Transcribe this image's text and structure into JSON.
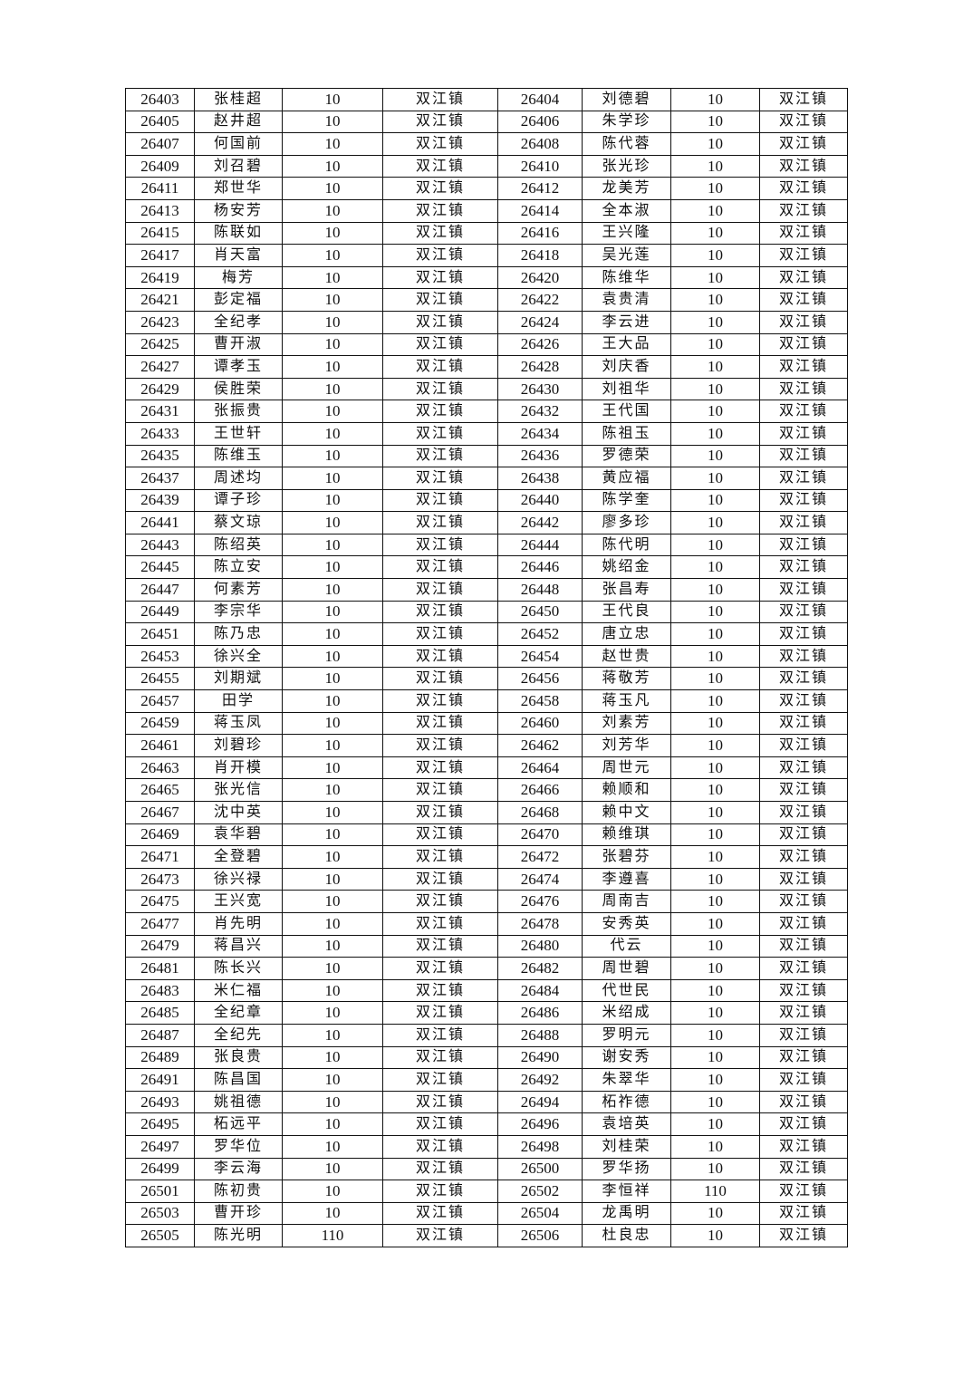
{
  "table": {
    "rows": [
      [
        "26403",
        "张桂超",
        "10",
        "双江镇",
        "26404",
        "刘德碧",
        "10",
        "双江镇"
      ],
      [
        "26405",
        "赵井超",
        "10",
        "双江镇",
        "26406",
        "朱学珍",
        "10",
        "双江镇"
      ],
      [
        "26407",
        "何国前",
        "10",
        "双江镇",
        "26408",
        "陈代蓉",
        "10",
        "双江镇"
      ],
      [
        "26409",
        "刘召碧",
        "10",
        "双江镇",
        "26410",
        "张光珍",
        "10",
        "双江镇"
      ],
      [
        "26411",
        "郑世华",
        "10",
        "双江镇",
        "26412",
        "龙美芳",
        "10",
        "双江镇"
      ],
      [
        "26413",
        "杨安芳",
        "10",
        "双江镇",
        "26414",
        "全本淑",
        "10",
        "双江镇"
      ],
      [
        "26415",
        "陈联如",
        "10",
        "双江镇",
        "26416",
        "王兴隆",
        "10",
        "双江镇"
      ],
      [
        "26417",
        "肖天富",
        "10",
        "双江镇",
        "26418",
        "吴光莲",
        "10",
        "双江镇"
      ],
      [
        "26419",
        "梅芳",
        "10",
        "双江镇",
        "26420",
        "陈维华",
        "10",
        "双江镇"
      ],
      [
        "26421",
        "彭定福",
        "10",
        "双江镇",
        "26422",
        "袁贵清",
        "10",
        "双江镇"
      ],
      [
        "26423",
        "全纪孝",
        "10",
        "双江镇",
        "26424",
        "李云进",
        "10",
        "双江镇"
      ],
      [
        "26425",
        "曹开淑",
        "10",
        "双江镇",
        "26426",
        "王大品",
        "10",
        "双江镇"
      ],
      [
        "26427",
        "谭孝玉",
        "10",
        "双江镇",
        "26428",
        "刘庆香",
        "10",
        "双江镇"
      ],
      [
        "26429",
        "侯胜荣",
        "10",
        "双江镇",
        "26430",
        "刘祖华",
        "10",
        "双江镇"
      ],
      [
        "26431",
        "张振贵",
        "10",
        "双江镇",
        "26432",
        "王代国",
        "10",
        "双江镇"
      ],
      [
        "26433",
        "王世轩",
        "10",
        "双江镇",
        "26434",
        "陈祖玉",
        "10",
        "双江镇"
      ],
      [
        "26435",
        "陈维玉",
        "10",
        "双江镇",
        "26436",
        "罗德荣",
        "10",
        "双江镇"
      ],
      [
        "26437",
        "周述均",
        "10",
        "双江镇",
        "26438",
        "黄应福",
        "10",
        "双江镇"
      ],
      [
        "26439",
        "谭子珍",
        "10",
        "双江镇",
        "26440",
        "陈学奎",
        "10",
        "双江镇"
      ],
      [
        "26441",
        "蔡文琼",
        "10",
        "双江镇",
        "26442",
        "廖多珍",
        "10",
        "双江镇"
      ],
      [
        "26443",
        "陈绍英",
        "10",
        "双江镇",
        "26444",
        "陈代明",
        "10",
        "双江镇"
      ],
      [
        "26445",
        "陈立安",
        "10",
        "双江镇",
        "26446",
        "姚绍金",
        "10",
        "双江镇"
      ],
      [
        "26447",
        "何素芳",
        "10",
        "双江镇",
        "26448",
        "张昌寿",
        "10",
        "双江镇"
      ],
      [
        "26449",
        "李宗华",
        "10",
        "双江镇",
        "26450",
        "王代良",
        "10",
        "双江镇"
      ],
      [
        "26451",
        "陈乃忠",
        "10",
        "双江镇",
        "26452",
        "唐立忠",
        "10",
        "双江镇"
      ],
      [
        "26453",
        "徐兴全",
        "10",
        "双江镇",
        "26454",
        "赵世贵",
        "10",
        "双江镇"
      ],
      [
        "26455",
        "刘期斌",
        "10",
        "双江镇",
        "26456",
        "蒋敬芳",
        "10",
        "双江镇"
      ],
      [
        "26457",
        "田学",
        "10",
        "双江镇",
        "26458",
        "蒋玉凡",
        "10",
        "双江镇"
      ],
      [
        "26459",
        "蒋玉凤",
        "10",
        "双江镇",
        "26460",
        "刘素芳",
        "10",
        "双江镇"
      ],
      [
        "26461",
        "刘碧珍",
        "10",
        "双江镇",
        "26462",
        "刘芳华",
        "10",
        "双江镇"
      ],
      [
        "26463",
        "肖开模",
        "10",
        "双江镇",
        "26464",
        "周世元",
        "10",
        "双江镇"
      ],
      [
        "26465",
        "张光信",
        "10",
        "双江镇",
        "26466",
        "赖顺和",
        "10",
        "双江镇"
      ],
      [
        "26467",
        "沈中英",
        "10",
        "双江镇",
        "26468",
        "赖中文",
        "10",
        "双江镇"
      ],
      [
        "26469",
        "袁华碧",
        "10",
        "双江镇",
        "26470",
        "赖维琪",
        "10",
        "双江镇"
      ],
      [
        "26471",
        "全登碧",
        "10",
        "双江镇",
        "26472",
        "张碧芬",
        "10",
        "双江镇"
      ],
      [
        "26473",
        "徐兴禄",
        "10",
        "双江镇",
        "26474",
        "李遵喜",
        "10",
        "双江镇"
      ],
      [
        "26475",
        "王兴宽",
        "10",
        "双江镇",
        "26476",
        "周南吉",
        "10",
        "双江镇"
      ],
      [
        "26477",
        "肖先明",
        "10",
        "双江镇",
        "26478",
        "安秀英",
        "10",
        "双江镇"
      ],
      [
        "26479",
        "蒋昌兴",
        "10",
        "双江镇",
        "26480",
        "代云",
        "10",
        "双江镇"
      ],
      [
        "26481",
        "陈长兴",
        "10",
        "双江镇",
        "26482",
        "周世碧",
        "10",
        "双江镇"
      ],
      [
        "26483",
        "米仁福",
        "10",
        "双江镇",
        "26484",
        "代世民",
        "10",
        "双江镇"
      ],
      [
        "26485",
        "全纪章",
        "10",
        "双江镇",
        "26486",
        "米绍成",
        "10",
        "双江镇"
      ],
      [
        "26487",
        "全纪先",
        "10",
        "双江镇",
        "26488",
        "罗明元",
        "10",
        "双江镇"
      ],
      [
        "26489",
        "张良贵",
        "10",
        "双江镇",
        "26490",
        "谢安秀",
        "10",
        "双江镇"
      ],
      [
        "26491",
        "陈昌国",
        "10",
        "双江镇",
        "26492",
        "朱翠华",
        "10",
        "双江镇"
      ],
      [
        "26493",
        "姚祖德",
        "10",
        "双江镇",
        "26494",
        "柘祚德",
        "10",
        "双江镇"
      ],
      [
        "26495",
        "柘远平",
        "10",
        "双江镇",
        "26496",
        "袁培英",
        "10",
        "双江镇"
      ],
      [
        "26497",
        "罗华位",
        "10",
        "双江镇",
        "26498",
        "刘桂荣",
        "10",
        "双江镇"
      ],
      [
        "26499",
        "李云海",
        "10",
        "双江镇",
        "26500",
        "罗华扬",
        "10",
        "双江镇"
      ],
      [
        "26501",
        "陈初贵",
        "10",
        "双江镇",
        "26502",
        "李恒祥",
        "110",
        "双江镇"
      ],
      [
        "26503",
        "曹开珍",
        "10",
        "双江镇",
        "26504",
        "龙禹明",
        "10",
        "双江镇"
      ],
      [
        "26505",
        "陈光明",
        "110",
        "双江镇",
        "26506",
        "杜良忠",
        "10",
        "双江镇"
      ]
    ]
  }
}
